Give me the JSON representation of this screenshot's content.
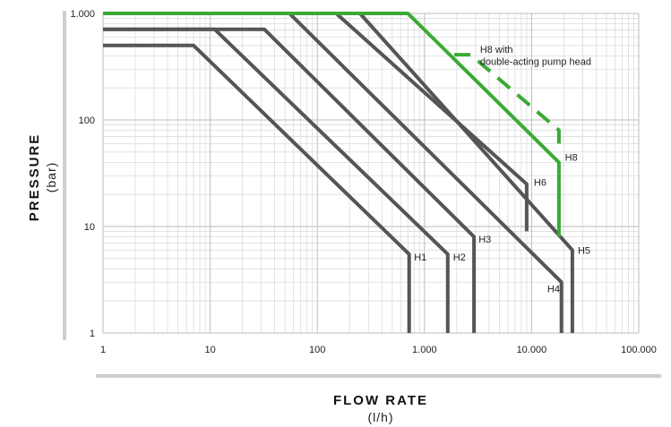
{
  "chart_data": {
    "type": "line",
    "x_scale": "log",
    "y_scale": "log",
    "xlim": [
      1,
      100000
    ],
    "ylim": [
      1,
      1000
    ],
    "grid": true,
    "xlabel": "FLOW RATE",
    "xunit": "(l/h)",
    "ylabel": "PRESSURE",
    "yunit": "(bar)",
    "x_ticks": [
      {
        "value": 1,
        "label": "1"
      },
      {
        "value": 10,
        "label": "10"
      },
      {
        "value": 100,
        "label": "100"
      },
      {
        "value": 1000,
        "label": "1.000"
      },
      {
        "value": 10000,
        "label": "10.000"
      },
      {
        "value": 100000,
        "label": "100.000"
      }
    ],
    "y_ticks": [
      {
        "value": 1,
        "label": "1"
      },
      {
        "value": 10,
        "label": "10"
      },
      {
        "value": 100,
        "label": "100"
      },
      {
        "value": 1000,
        "label": "1.000"
      }
    ],
    "colors": {
      "gray": "#555555",
      "green": "#3aaa35"
    },
    "series": [
      {
        "name": "H1",
        "color": "gray",
        "dashed": false,
        "points": [
          [
            1,
            500
          ],
          [
            7,
            500
          ],
          [
            720,
            5.5
          ],
          [
            720,
            1
          ]
        ]
      },
      {
        "name": "H2",
        "color": "gray",
        "dashed": false,
        "points": [
          [
            1,
            710
          ],
          [
            11,
            710
          ],
          [
            1650,
            5.5
          ],
          [
            1650,
            1
          ]
        ]
      },
      {
        "name": "H3",
        "color": "gray",
        "dashed": false,
        "points": [
          [
            1,
            710
          ],
          [
            32,
            710
          ],
          [
            2900,
            8
          ],
          [
            2900,
            1
          ]
        ]
      },
      {
        "name": "H4",
        "color": "gray",
        "dashed": false,
        "points": [
          [
            1,
            1000
          ],
          [
            55,
            1000
          ],
          [
            19000,
            3
          ],
          [
            19000,
            1
          ]
        ]
      },
      {
        "name": "H5",
        "color": "gray",
        "dashed": false,
        "points": [
          [
            1,
            1000
          ],
          [
            250,
            1000
          ],
          [
            24000,
            6
          ],
          [
            24000,
            1
          ]
        ]
      },
      {
        "name": "H6",
        "color": "gray",
        "dashed": false,
        "points": [
          [
            1,
            1000
          ],
          [
            150,
            1000
          ],
          [
            9000,
            25
          ],
          [
            9000,
            9
          ]
        ]
      },
      {
        "name": "H8",
        "color": "green",
        "dashed": false,
        "points": [
          [
            1,
            1000
          ],
          [
            700,
            1000
          ],
          [
            18000,
            40
          ],
          [
            18000,
            8
          ]
        ]
      },
      {
        "name": "H8 with double-acting pump head",
        "color": "green",
        "dashed": true,
        "points": [
          [
            1900,
            410
          ],
          [
            2700,
            410
          ],
          [
            18000,
            80
          ],
          [
            18000,
            55
          ]
        ]
      }
    ],
    "annotations": [
      {
        "text": "H1",
        "x": 800,
        "y": 5.2
      },
      {
        "text": "H2",
        "x": 1850,
        "y": 5.2
      },
      {
        "text": "H3",
        "x": 3200,
        "y": 7.6
      },
      {
        "text": "H4",
        "x": 14000,
        "y": 2.6
      },
      {
        "text": "H5",
        "x": 27000,
        "y": 6.0
      },
      {
        "text": "H6",
        "x": 10500,
        "y": 26
      },
      {
        "text": "H8",
        "x": 20500,
        "y": 45
      },
      {
        "text": "H8 with",
        "x": 3300,
        "y": 460
      },
      {
        "text": "double-acting pump head",
        "x": 3300,
        "y": 355
      }
    ]
  }
}
